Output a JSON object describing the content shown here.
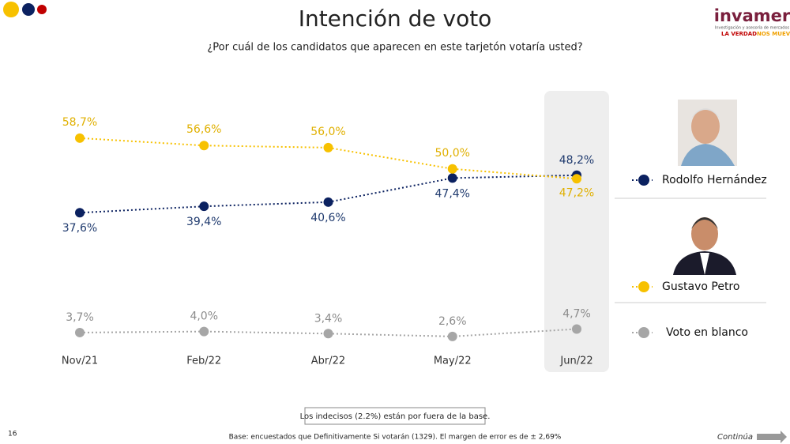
{
  "chart_data": {
    "type": "line",
    "title": "Intención de voto",
    "subtitle": "¿Por cuál de los candidatos que aparecen en este tarjetón votaría usted?",
    "categories": [
      "Nov/21",
      "Feb/22",
      "Abr/22",
      "May/22",
      "Jun/22"
    ],
    "ylim": [
      0,
      60
    ],
    "series": [
      {
        "name": "Rodolfo Hernández",
        "color": "#0b2160",
        "values": [
          37.6,
          39.4,
          40.6,
          47.4,
          48.2
        ],
        "value_labels": [
          "37,6%",
          "39,4%",
          "40,6%",
          "47,4%",
          "48,2%"
        ]
      },
      {
        "name": "Gustavo Petro",
        "color": "#f7c100",
        "values": [
          58.7,
          56.6,
          56.0,
          50.0,
          47.2
        ],
        "value_labels": [
          "58,7%",
          "56,6%",
          "56,0%",
          "50,0%",
          "47,2%"
        ]
      },
      {
        "name": "Voto en blanco",
        "color": "#a6a6a6",
        "values": [
          3.7,
          4.0,
          3.4,
          2.6,
          4.7
        ],
        "value_labels": [
          "3,7%",
          "4,0%",
          "3,4%",
          "2,6%",
          "4,7%"
        ]
      }
    ],
    "note": "Los indecisos (2.2%) están por fuera de la base.",
    "footer": "Base: encuestados que Definitivamente Si votarán (1329). El margen de error es de ± 2,69%",
    "page_number": "16",
    "continue_label": "Continúa",
    "logo": {
      "name": "invamer",
      "tagline": "Investigación y asesoría de mercados",
      "slogan_1": "LA VERDAD",
      "slogan_2": "NOS MUEVE"
    }
  }
}
